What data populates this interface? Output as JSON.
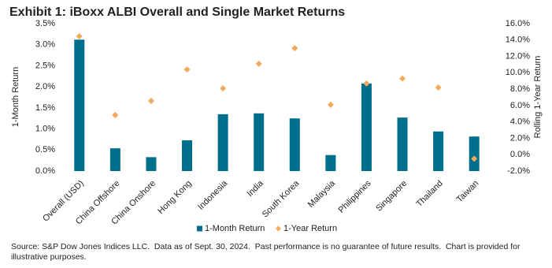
{
  "chart_data": {
    "type": "bar",
    "title": "Exhibit 1: iBoxx ALBI Overall and Single Market Returns",
    "y_label": "1-Month Return",
    "y2_label": "Rolling 1-Year Return",
    "categories": [
      "Overall (USD)",
      "China Offshore",
      "China Onshore",
      "Hong Kong",
      "Indonesia",
      "India",
      "South Korea",
      "Malaysia",
      "Philippines",
      "Singapore",
      "Thailand",
      "Taiwan"
    ],
    "series": [
      {
        "name": "1-Month Return",
        "type": "bar",
        "color": "#006f8c",
        "values": [
          3.12,
          0.54,
          0.33,
          0.73,
          1.35,
          1.37,
          1.25,
          0.38,
          2.08,
          1.27,
          0.94,
          0.82
        ]
      },
      {
        "name": "1-Year Return",
        "type": "scatter",
        "axis": "y2",
        "color": "#f4a95c",
        "values": [
          14.46,
          4.83,
          6.57,
          10.4,
          8.1,
          11.1,
          13.0,
          6.1,
          8.7,
          9.3,
          8.2,
          -0.5
        ]
      }
    ],
    "ylim": [
      0,
      3.5
    ],
    "yticks": [
      {
        "value": 0,
        "label": "0.0%"
      },
      {
        "value": 0.5,
        "label": "0.5%"
      },
      {
        "value": 1,
        "label": "1.0%"
      },
      {
        "value": 1.5,
        "label": "1.5%"
      },
      {
        "value": 2,
        "label": "2.0%"
      },
      {
        "value": 2.5,
        "label": "2.5%"
      },
      {
        "value": 3,
        "label": "3.0%"
      },
      {
        "value": 3.5,
        "label": "3.5%"
      }
    ],
    "y2lim": [
      -2,
      16
    ],
    "y2ticks": [
      {
        "value": -2,
        "label": "-2.0%"
      },
      {
        "value": 0,
        "label": "0.0%"
      },
      {
        "value": 2,
        "label": "2.0%"
      },
      {
        "value": 4,
        "label": "4.0%"
      },
      {
        "value": 6,
        "label": "6.0%"
      },
      {
        "value": 8,
        "label": "8.0%"
      },
      {
        "value": 10,
        "label": "10.0%"
      },
      {
        "value": 12,
        "label": "12.0%"
      },
      {
        "value": 14,
        "label": "14.0%"
      },
      {
        "value": 16,
        "label": "16.0%"
      }
    ],
    "legend": "bottom",
    "source": "Source: S&P Dow Jones Indices LLC.  Data as of Sept. 30, 2024.  Past performance is no guarantee of future results.  Chart is provided for illustrative purposes."
  }
}
